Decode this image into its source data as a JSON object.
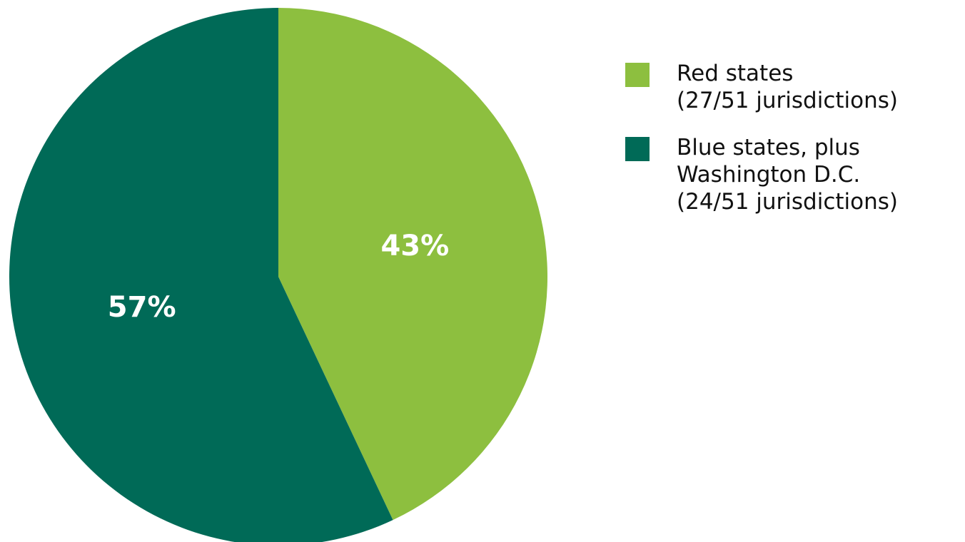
{
  "chart_data": {
    "type": "pie",
    "slices": [
      {
        "label_lines": [
          "Red states",
          "(27/51 jurisdictions)"
        ],
        "value": 43,
        "value_label": "43%",
        "color": "#8dbf3f"
      },
      {
        "label_lines": [
          "Blue states, plus",
          "Washington D.C.",
          "(24/51 jurisdictions)"
        ],
        "value": 57,
        "value_label": "57%",
        "color": "#006a57"
      }
    ],
    "start_angle_deg": 0,
    "direction": "clockwise",
    "legend_position": "right"
  }
}
